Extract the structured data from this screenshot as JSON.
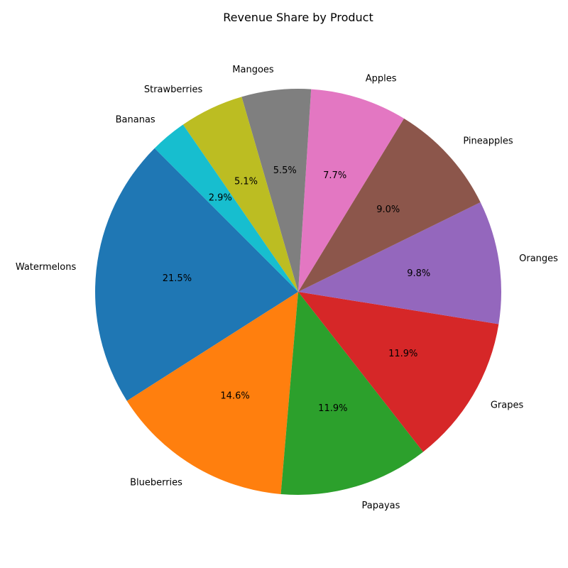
{
  "chart_data": {
    "type": "pie",
    "title": "Revenue Share by Product",
    "start_angle_deg": 135,
    "direction": "counterclockwise",
    "slices": [
      {
        "label": "Watermelons",
        "value": 21.5,
        "pct_label": "21.5%",
        "color": "#1f77b4"
      },
      {
        "label": "Blueberries",
        "value": 14.6,
        "pct_label": "14.6%",
        "color": "#ff7f0e"
      },
      {
        "label": "Papayas",
        "value": 11.9,
        "pct_label": "11.9%",
        "color": "#2ca02c"
      },
      {
        "label": "Grapes",
        "value": 11.9,
        "pct_label": "11.9%",
        "color": "#d62728"
      },
      {
        "label": "Oranges",
        "value": 9.8,
        "pct_label": "9.8%",
        "color": "#9467bd"
      },
      {
        "label": "Pineapples",
        "value": 9.0,
        "pct_label": "9.0%",
        "color": "#8c564b"
      },
      {
        "label": "Apples",
        "value": 7.7,
        "pct_label": "7.7%",
        "color": "#e377c2"
      },
      {
        "label": "Mangoes",
        "value": 5.5,
        "pct_label": "5.5%",
        "color": "#7f7f7f"
      },
      {
        "label": "Strawberries",
        "value": 5.1,
        "pct_label": "5.1%",
        "color": "#bcbd22"
      },
      {
        "label": "Bananas",
        "value": 2.9,
        "pct_label": "2.9%",
        "color": "#17becf"
      }
    ]
  }
}
